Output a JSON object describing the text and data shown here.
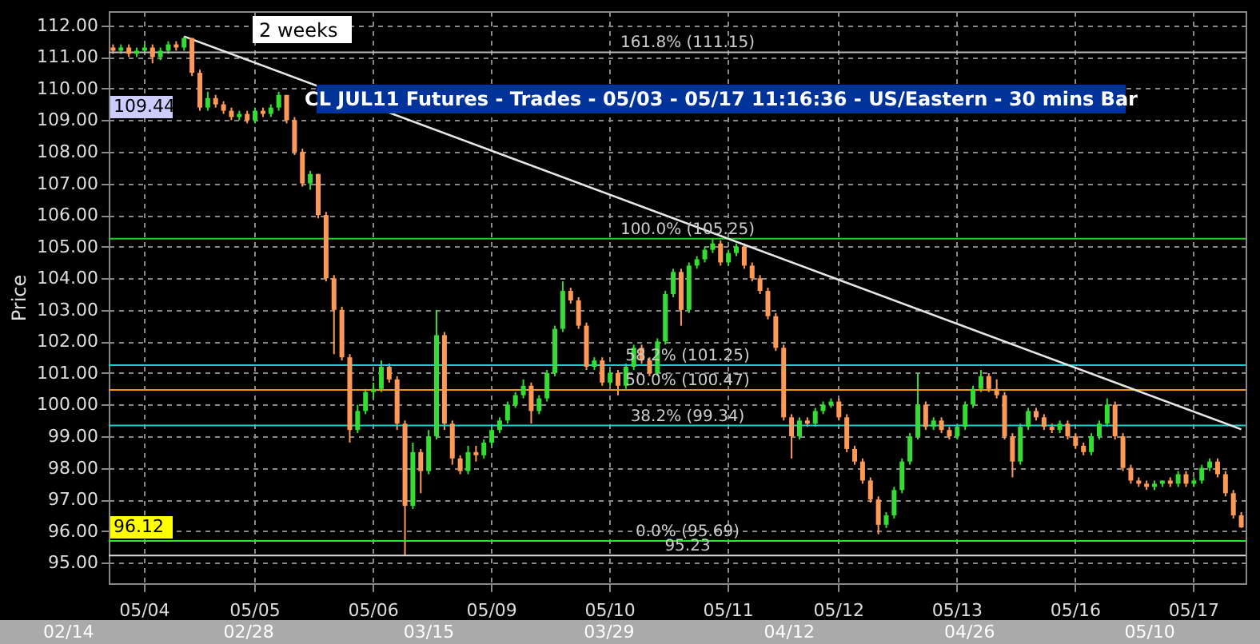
{
  "chart_data": {
    "type": "candlestick",
    "title": "CL JUL11 Futures - Trades - 05/03 - 05/17 11:16:36  - US/Eastern - 30 mins Bar",
    "ylabel": "Price",
    "categories": [
      null,
      null,
      null,
      null,
      "05/04",
      null,
      null,
      null,
      null,
      null,
      null,
      null,
      null,
      null,
      null,
      null,
      null,
      null,
      "05/05",
      null,
      null,
      null,
      null,
      null,
      null,
      null,
      null,
      null,
      null,
      null,
      null,
      null,
      null,
      "05/06",
      null,
      null,
      null,
      null,
      null,
      null,
      null,
      null,
      null,
      null,
      null,
      null,
      null,
      null,
      "05/09",
      null,
      null,
      null,
      null,
      null,
      null,
      null,
      null,
      null,
      null,
      null,
      null,
      null,
      null,
      "05/10",
      null,
      null,
      null,
      null,
      null,
      null,
      null,
      null,
      null,
      null,
      null,
      null,
      null,
      null,
      "05/11",
      null,
      null,
      null,
      null,
      null,
      null,
      null,
      null,
      null,
      null,
      null,
      null,
      null,
      "05/12",
      null,
      null,
      null,
      null,
      null,
      null,
      null,
      null,
      null,
      null,
      null,
      null,
      null,
      null,
      "05/13",
      null,
      null,
      null,
      null,
      null,
      null,
      null,
      null,
      null,
      null,
      null,
      null,
      null,
      null,
      "05/16",
      null,
      null,
      null,
      null,
      null,
      null,
      null,
      null,
      null,
      null,
      null,
      null,
      null,
      null,
      "05/17",
      null,
      null,
      null,
      null,
      null,
      null
    ],
    "ohlc": [
      [
        111.3,
        111.4,
        111.1,
        111.2
      ],
      [
        111.2,
        111.4,
        111.1,
        111.3
      ],
      [
        111.3,
        111.4,
        111.0,
        111.1
      ],
      [
        111.1,
        111.3,
        111.0,
        111.2
      ],
      [
        111.2,
        111.4,
        111.1,
        111.3
      ],
      [
        111.3,
        111.4,
        110.8,
        111.0
      ],
      [
        111.0,
        111.3,
        110.9,
        111.2
      ],
      [
        111.2,
        111.5,
        111.1,
        111.4
      ],
      [
        111.4,
        111.5,
        111.2,
        111.3
      ],
      [
        111.3,
        111.65,
        111.2,
        111.6
      ],
      [
        111.6,
        111.6,
        110.4,
        110.5
      ],
      [
        110.5,
        110.6,
        109.3,
        109.4
      ],
      [
        109.4,
        109.9,
        109.3,
        109.7
      ],
      [
        109.7,
        109.8,
        109.4,
        109.5
      ],
      [
        109.5,
        109.6,
        109.2,
        109.3
      ],
      [
        109.3,
        109.4,
        109.0,
        109.1
      ],
      [
        109.1,
        109.3,
        109.0,
        109.2
      ],
      [
        109.2,
        109.3,
        108.9,
        109.0
      ],
      [
        109.0,
        109.4,
        108.9,
        109.3
      ],
      [
        109.3,
        109.4,
        109.1,
        109.2
      ],
      [
        109.2,
        109.5,
        109.1,
        109.4
      ],
      [
        109.4,
        109.9,
        109.3,
        109.8
      ],
      [
        109.8,
        109.8,
        108.9,
        109.0
      ],
      [
        109.0,
        109.1,
        107.9,
        108.0
      ],
      [
        108.0,
        108.1,
        106.9,
        107.0
      ],
      [
        107.0,
        107.4,
        106.8,
        107.3
      ],
      [
        107.3,
        107.3,
        105.9,
        106.0
      ],
      [
        106.0,
        106.1,
        103.9,
        104.0
      ],
      [
        104.0,
        104.1,
        101.6,
        103.0
      ],
      [
        103.0,
        103.1,
        101.4,
        101.5
      ],
      [
        101.5,
        101.6,
        98.8,
        99.2
      ],
      [
        99.2,
        100.0,
        99.1,
        99.8
      ],
      [
        99.8,
        100.5,
        99.7,
        100.4
      ],
      [
        100.4,
        100.7,
        100.2,
        100.5
      ],
      [
        100.5,
        101.4,
        100.4,
        101.2
      ],
      [
        101.2,
        101.3,
        100.7,
        100.8
      ],
      [
        100.8,
        100.9,
        99.2,
        99.4
      ],
      [
        99.4,
        99.5,
        95.23,
        96.8
      ],
      [
        96.8,
        98.8,
        96.7,
        98.5
      ],
      [
        98.5,
        98.6,
        97.2,
        97.9
      ],
      [
        97.9,
        99.2,
        97.8,
        99.0
      ],
      [
        99.0,
        103.0,
        98.9,
        102.2
      ],
      [
        102.2,
        102.3,
        99.2,
        99.4
      ],
      [
        99.4,
        99.5,
        98.1,
        98.3
      ],
      [
        98.3,
        98.4,
        97.8,
        97.9
      ],
      [
        97.9,
        98.7,
        97.8,
        98.5
      ],
      [
        98.5,
        98.7,
        98.2,
        98.4
      ],
      [
        98.4,
        98.9,
        98.3,
        98.8
      ],
      [
        98.8,
        99.3,
        98.7,
        99.2
      ],
      [
        99.2,
        99.6,
        99.1,
        99.5
      ],
      [
        99.5,
        100.1,
        99.4,
        100.0
      ],
      [
        100.0,
        100.4,
        99.9,
        100.3
      ],
      [
        100.3,
        100.8,
        100.2,
        100.6
      ],
      [
        100.6,
        100.7,
        99.4,
        99.8
      ],
      [
        99.8,
        100.3,
        99.7,
        100.2
      ],
      [
        100.2,
        101.1,
        100.1,
        101.0
      ],
      [
        101.0,
        102.5,
        100.9,
        102.4
      ],
      [
        102.4,
        103.9,
        102.3,
        103.6
      ],
      [
        103.6,
        103.7,
        103.2,
        103.3
      ],
      [
        103.3,
        103.4,
        102.4,
        102.5
      ],
      [
        102.5,
        102.6,
        101.1,
        101.2
      ],
      [
        101.2,
        101.5,
        101.1,
        101.4
      ],
      [
        101.4,
        101.5,
        100.6,
        100.7
      ],
      [
        100.7,
        101.1,
        100.6,
        101.0
      ],
      [
        101.0,
        101.1,
        100.3,
        100.6
      ],
      [
        100.6,
        101.3,
        100.5,
        101.2
      ],
      [
        101.2,
        101.9,
        101.1,
        101.8
      ],
      [
        101.8,
        101.9,
        101.3,
        101.4
      ],
      [
        101.4,
        101.5,
        100.9,
        101.0
      ],
      [
        101.0,
        102.1,
        100.9,
        102.0
      ],
      [
        102.0,
        103.6,
        101.9,
        103.5
      ],
      [
        103.5,
        104.3,
        103.4,
        104.2
      ],
      [
        104.2,
        104.3,
        102.5,
        103.0
      ],
      [
        103.0,
        104.5,
        102.9,
        104.4
      ],
      [
        104.4,
        104.7,
        104.3,
        104.6
      ],
      [
        104.6,
        105.0,
        104.5,
        104.9
      ],
      [
        104.9,
        105.25,
        104.8,
        105.1
      ],
      [
        105.1,
        105.2,
        104.4,
        104.5
      ],
      [
        104.5,
        104.9,
        104.4,
        104.8
      ],
      [
        104.8,
        105.1,
        104.7,
        105.0
      ],
      [
        105.0,
        105.1,
        104.3,
        104.4
      ],
      [
        104.4,
        104.5,
        103.9,
        104.0
      ],
      [
        104.0,
        104.1,
        103.5,
        103.6
      ],
      [
        103.6,
        103.7,
        102.7,
        102.8
      ],
      [
        102.8,
        102.9,
        101.7,
        101.8
      ],
      [
        101.8,
        101.9,
        99.5,
        99.6
      ],
      [
        99.6,
        99.7,
        98.3,
        99.0
      ],
      [
        99.0,
        99.6,
        98.9,
        99.5
      ],
      [
        99.5,
        99.6,
        99.3,
        99.4
      ],
      [
        99.4,
        99.9,
        99.3,
        99.8
      ],
      [
        99.8,
        100.1,
        99.7,
        100.0
      ],
      [
        100.0,
        100.2,
        99.9,
        100.1
      ],
      [
        100.1,
        100.2,
        99.5,
        99.6
      ],
      [
        99.6,
        99.7,
        98.5,
        98.6
      ],
      [
        98.6,
        98.7,
        98.1,
        98.2
      ],
      [
        98.2,
        98.3,
        97.5,
        97.6
      ],
      [
        97.6,
        97.7,
        96.9,
        97.0
      ],
      [
        97.0,
        97.1,
        95.9,
        96.2
      ],
      [
        96.2,
        96.6,
        96.1,
        96.5
      ],
      [
        96.5,
        97.4,
        96.4,
        97.3
      ],
      [
        97.3,
        98.3,
        97.2,
        98.2
      ],
      [
        98.2,
        99.1,
        98.1,
        99.0
      ],
      [
        99.0,
        101.0,
        98.9,
        100.0
      ],
      [
        100.0,
        100.1,
        99.2,
        99.3
      ],
      [
        99.3,
        99.6,
        99.2,
        99.5
      ],
      [
        99.5,
        99.6,
        99.1,
        99.2
      ],
      [
        99.2,
        99.3,
        98.9,
        99.0
      ],
      [
        99.0,
        99.4,
        98.9,
        99.3
      ],
      [
        99.3,
        100.1,
        99.2,
        100.0
      ],
      [
        100.0,
        100.6,
        99.9,
        100.5
      ],
      [
        100.5,
        101.1,
        100.4,
        100.9
      ],
      [
        100.9,
        101.0,
        100.4,
        100.5
      ],
      [
        100.5,
        100.8,
        100.2,
        100.3
      ],
      [
        100.3,
        100.4,
        98.9,
        99.0
      ],
      [
        99.0,
        99.1,
        97.7,
        98.2
      ],
      [
        98.2,
        99.4,
        98.1,
        99.3
      ],
      [
        99.3,
        99.9,
        99.2,
        99.8
      ],
      [
        99.8,
        99.9,
        99.5,
        99.6
      ],
      [
        99.6,
        99.7,
        99.2,
        99.3
      ],
      [
        99.3,
        99.4,
        99.1,
        99.2
      ],
      [
        99.2,
        99.5,
        99.1,
        99.4
      ],
      [
        99.4,
        99.5,
        98.9,
        99.0
      ],
      [
        99.0,
        99.1,
        98.6,
        98.7
      ],
      [
        98.7,
        98.8,
        98.4,
        98.5
      ],
      [
        98.5,
        99.1,
        98.4,
        99.0
      ],
      [
        99.0,
        99.5,
        98.9,
        99.4
      ],
      [
        99.4,
        100.2,
        99.3,
        100.0
      ],
      [
        100.0,
        100.1,
        98.9,
        99.0
      ],
      [
        99.0,
        99.1,
        97.9,
        98.0
      ],
      [
        98.0,
        98.1,
        97.5,
        97.6
      ],
      [
        97.6,
        97.7,
        97.4,
        97.5
      ],
      [
        97.5,
        97.6,
        97.3,
        97.4
      ],
      [
        97.4,
        97.6,
        97.3,
        97.5
      ],
      [
        97.5,
        97.6,
        97.4,
        97.6
      ],
      [
        97.6,
        97.7,
        97.4,
        97.5
      ],
      [
        97.5,
        97.9,
        97.4,
        97.8
      ],
      [
        97.8,
        97.9,
        97.4,
        97.5
      ],
      [
        97.5,
        97.7,
        97.4,
        97.6
      ],
      [
        97.6,
        98.1,
        97.5,
        98.0
      ],
      [
        98.0,
        98.3,
        97.9,
        98.2
      ],
      [
        98.2,
        98.3,
        97.7,
        97.8
      ],
      [
        97.8,
        97.9,
        97.1,
        97.2
      ],
      [
        97.2,
        97.3,
        96.4,
        96.5
      ],
      [
        96.5,
        96.6,
        96.1,
        96.12
      ]
    ],
    "series": [
      {
        "type": "line",
        "color": "#e6e6e6",
        "values": [
          null,
          null,
          null,
          null,
          null,
          null,
          null,
          null,
          null,
          111.65,
          null,
          null,
          null,
          null,
          null,
          null,
          null,
          null,
          null,
          null,
          null,
          null,
          null,
          null,
          null,
          null,
          null,
          null,
          null,
          null,
          null,
          null,
          null,
          null,
          null,
          null,
          null,
          null,
          null,
          null,
          null,
          null,
          null,
          null,
          null,
          null,
          null,
          null,
          null,
          null,
          null,
          null,
          null,
          null,
          null,
          null,
          null,
          null,
          null,
          null,
          null,
          null,
          null,
          null,
          null,
          null,
          null,
          null,
          null,
          null,
          null,
          null,
          null,
          null,
          null,
          null,
          null,
          null,
          null,
          null,
          null,
          null,
          null,
          null,
          null,
          null,
          null,
          null,
          null,
          null,
          null,
          null,
          null,
          null,
          null,
          null,
          null,
          null,
          null,
          null,
          null,
          null,
          null,
          null,
          null,
          null,
          null,
          null,
          null,
          null,
          null,
          null,
          null,
          null,
          null,
          null,
          null,
          null,
          null,
          null,
          null,
          null,
          null,
          null,
          null,
          null,
          null,
          null,
          null,
          null,
          null,
          null,
          null,
          null,
          null,
          null,
          null,
          null,
          null,
          null,
          null,
          null,
          null,
          99.22
        ]
      }
    ],
    "ylim": [
      94.35,
      112.45
    ],
    "yticks": [
      {
        "value": 95,
        "label": "95.00"
      },
      {
        "value": 96,
        "label": "96.00"
      },
      {
        "value": 97,
        "label": "97.00"
      },
      {
        "value": 98,
        "label": "98.00"
      },
      {
        "value": 99,
        "label": "99.00"
      },
      {
        "value": 100,
        "label": "100.00"
      },
      {
        "value": 101,
        "label": "101.00"
      },
      {
        "value": 102,
        "label": "102.00"
      },
      {
        "value": 103,
        "label": "103.00"
      },
      {
        "value": 104,
        "label": "104.00"
      },
      {
        "value": 105,
        "label": "105.00"
      },
      {
        "value": 106,
        "label": "106.00"
      },
      {
        "value": 107,
        "label": "107.00"
      },
      {
        "value": 108,
        "label": "108.00"
      },
      {
        "value": 109,
        "label": "109.00"
      },
      {
        "value": 110,
        "label": "110.00"
      },
      {
        "value": 111,
        "label": "111.00"
      },
      {
        "value": 112,
        "label": "112.00"
      }
    ],
    "grid": true,
    "ref_lines": [
      {
        "axis": "y",
        "value": 111.15,
        "label": "161.8% (111.15)",
        "color": "#bbbbbb"
      },
      {
        "axis": "y",
        "value": 105.25,
        "label": "100.0% (105.25)",
        "color": "#22cc22"
      },
      {
        "axis": "y",
        "value": 101.25,
        "label": "58.2% (101.25)",
        "color": "#22cccc"
      },
      {
        "axis": "y",
        "value": 100.47,
        "label": "50.0% (100.47)",
        "color": "#ee9900"
      },
      {
        "axis": "y",
        "value": 99.34,
        "label": "38.2% (99.34)",
        "color": "#22cccc"
      },
      {
        "axis": "y",
        "value": 95.69,
        "label": "0.0% (95.69)",
        "color": "#22ee22"
      },
      {
        "axis": "y",
        "value": 95.23,
        "label": "95.23",
        "color": "#dddddd"
      }
    ],
    "annotations": [
      "2 weeks",
      "109.44",
      "96.12",
      "02/14",
      "02/28",
      "03/15",
      "03/29",
      "04/12",
      "04/26",
      "05/10"
    ]
  }
}
